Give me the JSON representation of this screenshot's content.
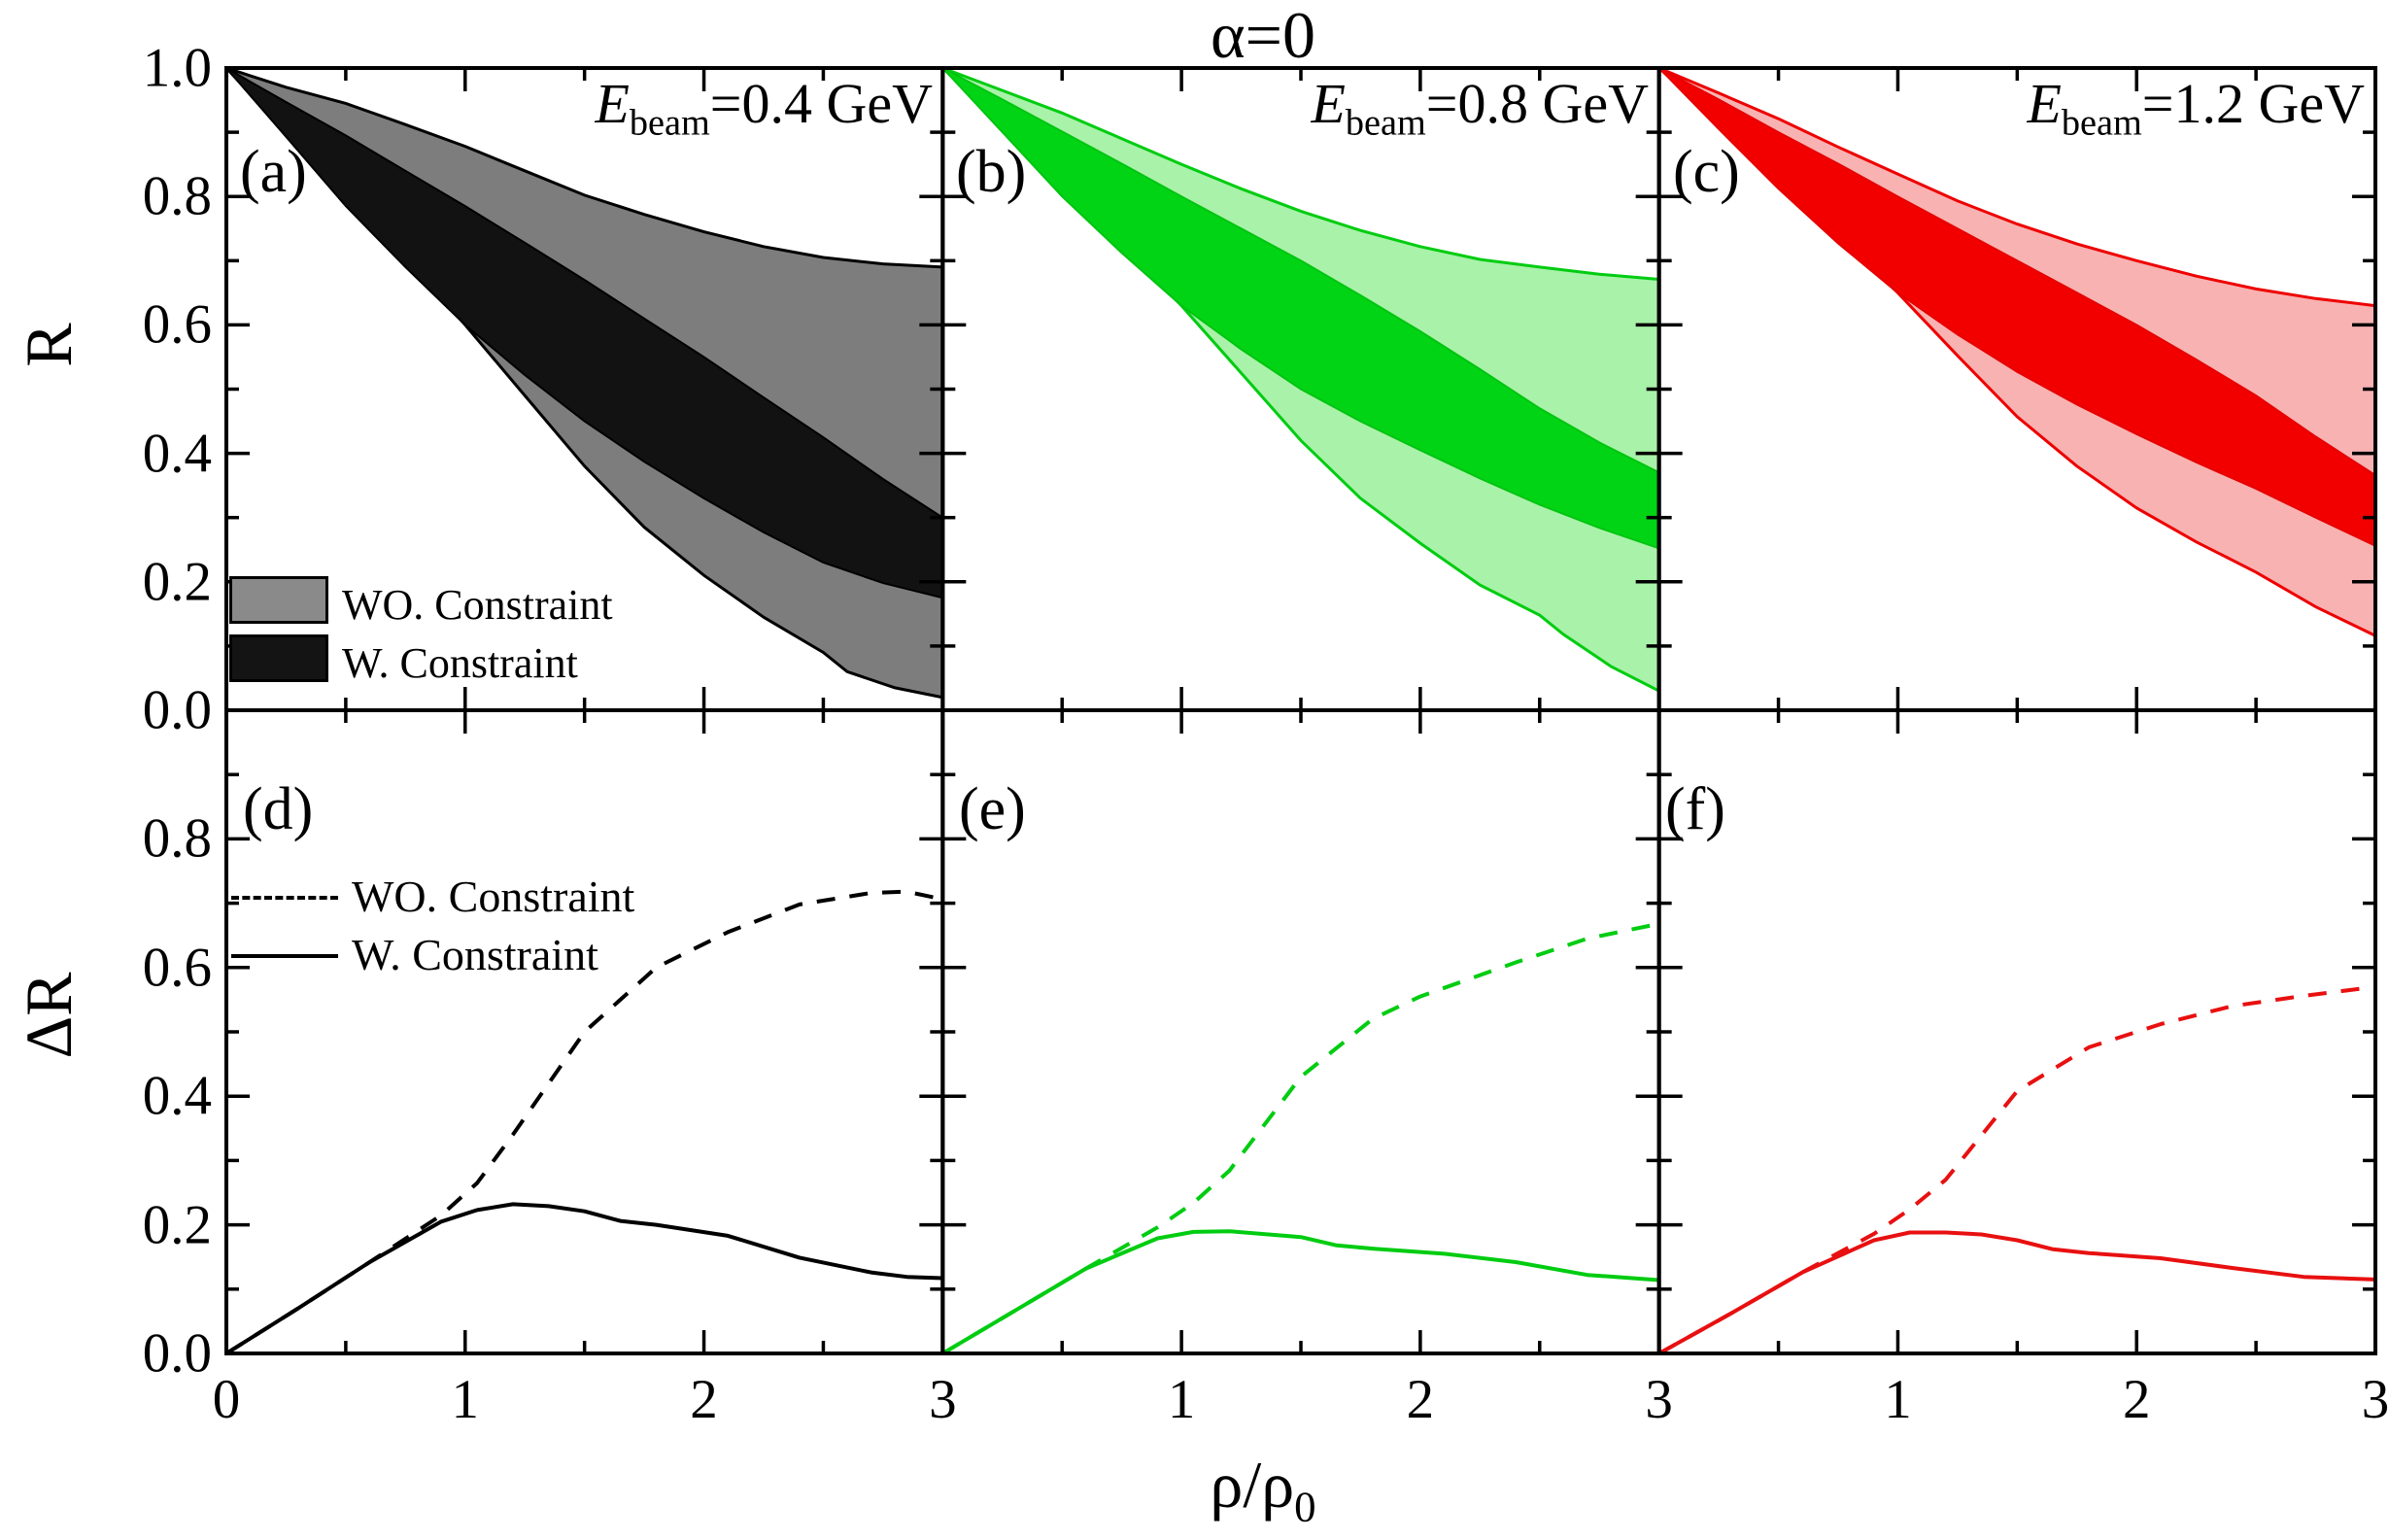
{
  "figure": {
    "title": "α=0",
    "ylabel_top": "R",
    "ylabel_bottom": "ΔR",
    "xlabel_main": "ρ/ρ",
    "xlabel_sub": "0"
  },
  "axes": {
    "x_tick_labels": [
      "0",
      "1",
      "2",
      "3",
      "1",
      "2",
      "3",
      "1",
      "2",
      "3"
    ],
    "y_tick_labels_top": [
      "1.0",
      "0.8",
      "0.6",
      "0.4",
      "0.2",
      "0.0"
    ],
    "y_tick_labels_bottom": [
      "0.8",
      "0.6",
      "0.4",
      "0.2",
      "0.0"
    ]
  },
  "panels": {
    "a": {
      "letter": "(a)",
      "energy_prefix": "E",
      "energy_sub": "beam",
      "energy_value": "=0.4 GeV"
    },
    "b": {
      "letter": "(b)",
      "energy_prefix": "E",
      "energy_sub": "beam",
      "energy_value": "=0.8 GeV"
    },
    "c": {
      "letter": "(c)",
      "energy_prefix": "E",
      "energy_sub": "beam",
      "energy_value": "=1.2 GeV"
    },
    "d": {
      "letter": "(d)"
    },
    "e": {
      "letter": "(e)"
    },
    "f": {
      "letter": "(f)"
    }
  },
  "legend_top": {
    "wo_label": "WO. Constraint",
    "w_label": "W. Constraint",
    "wo_swatch_color": "#8a8a8a",
    "w_swatch_color": "#141414"
  },
  "legend_bottom": {
    "wo_label": "WO. Constraint",
    "w_label": "W. Constraint"
  },
  "chart_data": {
    "type": "area+line",
    "x_range": [
      0,
      3
    ],
    "r_range": [
      0,
      1
    ],
    "grid": false,
    "top_panels": [
      {
        "id": "a",
        "energy": "0.4 GeV",
        "colors": {
          "outer_fill": "#7d7d7d",
          "outer_edge": "#000000",
          "inner_fill": "#121212",
          "inner_edge": "#000000"
        },
        "bands": {
          "wo_upper": [
            [
              0,
              1
            ],
            [
              0.25,
              0.97
            ],
            [
              0.5,
              0.945
            ],
            [
              0.75,
              0.912
            ],
            [
              1,
              0.878
            ],
            [
              1.25,
              0.84
            ],
            [
              1.5,
              0.802
            ],
            [
              1.75,
              0.772
            ],
            [
              2,
              0.745
            ],
            [
              2.25,
              0.722
            ],
            [
              2.5,
              0.705
            ],
            [
              2.75,
              0.695
            ],
            [
              3,
              0.69
            ]
          ],
          "wo_lower": [
            [
              0,
              1
            ],
            [
              0.25,
              0.9
            ],
            [
              0.5,
              0.805
            ],
            [
              0.75,
              0.705
            ],
            [
              1,
              0.6
            ],
            [
              1.25,
              0.49
            ],
            [
              1.5,
              0.38
            ],
            [
              1.75,
              0.285
            ],
            [
              2,
              0.21
            ],
            [
              2.25,
              0.145
            ],
            [
              2.5,
              0.09
            ],
            [
              2.6,
              0.06
            ],
            [
              2.8,
              0.035
            ],
            [
              3,
              0.02
            ]
          ],
          "w_upper": [
            [
              0,
              1
            ],
            [
              0.25,
              0.947
            ],
            [
              0.5,
              0.895
            ],
            [
              0.75,
              0.84
            ],
            [
              1,
              0.785
            ],
            [
              1.25,
              0.728
            ],
            [
              1.5,
              0.67
            ],
            [
              1.75,
              0.61
            ],
            [
              2,
              0.55
            ],
            [
              2.25,
              0.487
            ],
            [
              2.5,
              0.425
            ],
            [
              2.75,
              0.36
            ],
            [
              3,
              0.3
            ]
          ],
          "w_lower": [
            [
              0,
              1
            ],
            [
              0.25,
              0.893
            ],
            [
              0.5,
              0.785
            ],
            [
              0.75,
              0.69
            ],
            [
              1,
              0.6
            ],
            [
              1.25,
              0.522
            ],
            [
              1.5,
              0.45
            ],
            [
              1.75,
              0.387
            ],
            [
              2,
              0.33
            ],
            [
              2.25,
              0.277
            ],
            [
              2.5,
              0.23
            ],
            [
              2.75,
              0.198
            ],
            [
              3,
              0.175
            ]
          ]
        }
      },
      {
        "id": "b",
        "energy": "0.8 GeV",
        "colors": {
          "outer_fill": "#a9f2a9",
          "outer_edge": "#00cc11",
          "inner_fill": "#00d414",
          "inner_edge": "#00c410"
        },
        "bands": {
          "wo_upper": [
            [
              0,
              1
            ],
            [
              0.25,
              0.965
            ],
            [
              0.5,
              0.93
            ],
            [
              0.75,
              0.89
            ],
            [
              1,
              0.85
            ],
            [
              1.25,
              0.812
            ],
            [
              1.5,
              0.777
            ],
            [
              1.75,
              0.747
            ],
            [
              2,
              0.722
            ],
            [
              2.25,
              0.702
            ],
            [
              2.5,
              0.69
            ],
            [
              2.75,
              0.679
            ],
            [
              3,
              0.671
            ]
          ],
          "wo_lower": [
            [
              0,
              1
            ],
            [
              0.25,
              0.91
            ],
            [
              0.5,
              0.82
            ],
            [
              0.75,
              0.725
            ],
            [
              1,
              0.63
            ],
            [
              1.25,
              0.525
            ],
            [
              1.5,
              0.42
            ],
            [
              1.75,
              0.33
            ],
            [
              2,
              0.26
            ],
            [
              2.25,
              0.195
            ],
            [
              2.5,
              0.148
            ],
            [
              2.6,
              0.118
            ],
            [
              2.8,
              0.068
            ],
            [
              3,
              0.03
            ]
          ],
          "w_upper": [
            [
              0,
              1
            ],
            [
              0.25,
              0.951
            ],
            [
              0.5,
              0.901
            ],
            [
              0.75,
              0.851
            ],
            [
              1,
              0.8
            ],
            [
              1.25,
              0.75
            ],
            [
              1.5,
              0.7
            ],
            [
              1.75,
              0.646
            ],
            [
              2,
              0.59
            ],
            [
              2.25,
              0.531
            ],
            [
              2.5,
              0.47
            ],
            [
              2.75,
              0.417
            ],
            [
              3,
              0.37
            ]
          ],
          "w_lower": [
            [
              0,
              1
            ],
            [
              0.25,
              0.9
            ],
            [
              0.5,
              0.8
            ],
            [
              0.75,
              0.712
            ],
            [
              1,
              0.63
            ],
            [
              1.25,
              0.562
            ],
            [
              1.5,
              0.5
            ],
            [
              1.75,
              0.45
            ],
            [
              2,
              0.405
            ],
            [
              2.25,
              0.361
            ],
            [
              2.5,
              0.32
            ],
            [
              2.75,
              0.284
            ],
            [
              3,
              0.252
            ]
          ]
        }
      },
      {
        "id": "c",
        "energy": "1.2 GeV",
        "colors": {
          "outer_fill": "#f8b2b2",
          "outer_edge": "#ee0000",
          "inner_fill": "#f20000",
          "inner_edge": "#e60000"
        },
        "bands": {
          "wo_upper": [
            [
              0,
              1
            ],
            [
              0.25,
              0.961
            ],
            [
              0.5,
              0.921
            ],
            [
              0.75,
              0.877
            ],
            [
              1,
              0.835
            ],
            [
              1.25,
              0.793
            ],
            [
              1.5,
              0.757
            ],
            [
              1.75,
              0.726
            ],
            [
              2,
              0.7
            ],
            [
              2.25,
              0.676
            ],
            [
              2.5,
              0.656
            ],
            [
              2.75,
              0.641
            ],
            [
              3,
              0.63
            ]
          ],
          "wo_lower": [
            [
              0,
              1
            ],
            [
              0.25,
              0.915
            ],
            [
              0.5,
              0.83
            ],
            [
              0.75,
              0.74
            ],
            [
              1,
              0.65
            ],
            [
              1.25,
              0.552
            ],
            [
              1.5,
              0.457
            ],
            [
              1.75,
              0.38
            ],
            [
              2,
              0.315
            ],
            [
              2.25,
              0.262
            ],
            [
              2.5,
              0.215
            ],
            [
              2.75,
              0.161
            ],
            [
              3,
              0.116
            ]
          ],
          "w_upper": [
            [
              0,
              1
            ],
            [
              0.25,
              0.951
            ],
            [
              0.5,
              0.9
            ],
            [
              0.75,
              0.851
            ],
            [
              1,
              0.8
            ],
            [
              1.25,
              0.75
            ],
            [
              1.5,
              0.7
            ],
            [
              1.75,
              0.65
            ],
            [
              2,
              0.6
            ],
            [
              2.25,
              0.546
            ],
            [
              2.5,
              0.49
            ],
            [
              2.75,
              0.426
            ],
            [
              3,
              0.366
            ]
          ],
          "w_lower": [
            [
              0,
              1
            ],
            [
              0.25,
              0.905
            ],
            [
              0.5,
              0.812
            ],
            [
              0.75,
              0.727
            ],
            [
              1,
              0.65
            ],
            [
              1.25,
              0.585
            ],
            [
              1.5,
              0.527
            ],
            [
              1.75,
              0.476
            ],
            [
              2,
              0.43
            ],
            [
              2.25,
              0.386
            ],
            [
              2.5,
              0.345
            ],
            [
              2.75,
              0.3
            ],
            [
              3,
              0.256
            ]
          ]
        }
      }
    ],
    "bottom_panels": [
      {
        "id": "d",
        "color": "#000000",
        "curves": {
          "wo_dashed": [
            [
              0,
              0
            ],
            [
              0.3,
              0.07
            ],
            [
              0.6,
              0.142
            ],
            [
              0.9,
              0.215
            ],
            [
              1.05,
              0.265
            ],
            [
              1.2,
              0.34
            ],
            [
              1.5,
              0.5
            ],
            [
              1.8,
              0.6
            ],
            [
              2.1,
              0.655
            ],
            [
              2.4,
              0.698
            ],
            [
              2.7,
              0.716
            ],
            [
              2.85,
              0.718
            ],
            [
              3,
              0.706
            ]
          ],
          "w_solid": [
            [
              0,
              0
            ],
            [
              0.3,
              0.07
            ],
            [
              0.6,
              0.142
            ],
            [
              0.9,
              0.205
            ],
            [
              1.05,
              0.223
            ],
            [
              1.2,
              0.232
            ],
            [
              1.35,
              0.229
            ],
            [
              1.5,
              0.221
            ],
            [
              1.65,
              0.206
            ],
            [
              1.8,
              0.2
            ],
            [
              2.1,
              0.183
            ],
            [
              2.4,
              0.149
            ],
            [
              2.7,
              0.126
            ],
            [
              2.85,
              0.119
            ],
            [
              3,
              0.117
            ]
          ]
        }
      },
      {
        "id": "e",
        "color": "#00cc11",
        "curves": {
          "wo_dashed": [
            [
              0,
              0
            ],
            [
              0.3,
              0.066
            ],
            [
              0.6,
              0.132
            ],
            [
              0.9,
              0.196
            ],
            [
              1.05,
              0.234
            ],
            [
              1.2,
              0.284
            ],
            [
              1.5,
              0.43
            ],
            [
              1.8,
              0.52
            ],
            [
              2,
              0.555
            ],
            [
              2.4,
              0.608
            ],
            [
              2.7,
              0.645
            ],
            [
              3,
              0.668
            ]
          ],
          "w_solid": [
            [
              0,
              0
            ],
            [
              0.3,
              0.066
            ],
            [
              0.6,
              0.132
            ],
            [
              0.9,
              0.179
            ],
            [
              1.05,
              0.189
            ],
            [
              1.2,
              0.19
            ],
            [
              1.5,
              0.181
            ],
            [
              1.65,
              0.168
            ],
            [
              1.8,
              0.163
            ],
            [
              2.1,
              0.155
            ],
            [
              2.4,
              0.142
            ],
            [
              2.7,
              0.122
            ],
            [
              3,
              0.114
            ]
          ]
        }
      },
      {
        "id": "f",
        "color": "#e81010",
        "curves": {
          "wo_dashed": [
            [
              0,
              0
            ],
            [
              0.3,
              0.062
            ],
            [
              0.6,
              0.126
            ],
            [
              0.9,
              0.186
            ],
            [
              1.05,
              0.224
            ],
            [
              1.2,
              0.27
            ],
            [
              1.5,
              0.408
            ],
            [
              1.8,
              0.476
            ],
            [
              2.1,
              0.512
            ],
            [
              2.4,
              0.54
            ],
            [
              2.7,
              0.556
            ],
            [
              3,
              0.57
            ]
          ],
          "w_solid": [
            [
              0,
              0
            ],
            [
              0.3,
              0.062
            ],
            [
              0.6,
              0.126
            ],
            [
              0.9,
              0.176
            ],
            [
              1.05,
              0.188
            ],
            [
              1.2,
              0.188
            ],
            [
              1.35,
              0.185
            ],
            [
              1.5,
              0.176
            ],
            [
              1.65,
              0.162
            ],
            [
              1.8,
              0.156
            ],
            [
              2.1,
              0.148
            ],
            [
              2.4,
              0.133
            ],
            [
              2.7,
              0.119
            ],
            [
              3,
              0.115
            ]
          ]
        }
      }
    ]
  }
}
